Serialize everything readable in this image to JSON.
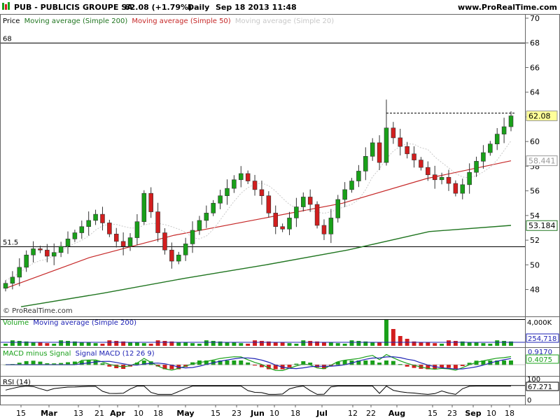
{
  "header": {
    "ticker": "PUB - PUBLICIS GROUPE SA",
    "price": "62.08 (+1.79%)",
    "period": "Daily",
    "datetime": "Sep 18 2013 11:48",
    "site": "www.ProRealTime.com",
    "watermark": "© ProRealTime.com",
    "colors": {
      "up": "#19a019",
      "down": "#d21e1e"
    }
  },
  "chart_data": [
    {
      "type": "candlestick",
      "title": "Price",
      "series": [
        {
          "name": "Moving average (Simple 200)",
          "color": "#207520",
          "values": [
            46.6,
            47.7,
            48.9,
            50.0,
            51.2,
            52.7,
            53.2
          ]
        },
        {
          "name": "Moving average (Simple 50)",
          "color": "#c62828",
          "values": [
            48.1,
            50.6,
            52.4,
            53.7,
            55.0,
            57.0,
            58.44
          ]
        },
        {
          "name": "Moving average (Simple 20)",
          "color": "#c8c8c8",
          "values": []
        }
      ],
      "ylim": [
        46.5,
        70
      ],
      "yticks": [
        48,
        50,
        52,
        54,
        56,
        58,
        60,
        62,
        64,
        66,
        68,
        70
      ],
      "hlines": [
        68,
        51.5
      ],
      "hline_labels": [
        "68",
        "51.5"
      ],
      "badges": {
        "last": "62.08",
        "sma50": "58.441",
        "sma200": "53.184"
      },
      "closes": [
        48.5,
        49.0,
        49.8,
        50.8,
        51.3,
        51.2,
        50.7,
        51.0,
        51.5,
        52.1,
        52.6,
        53.1,
        53.6,
        54.1,
        53.4,
        52.5,
        51.9,
        51.5,
        52.2,
        53.5,
        55.8,
        54.3,
        52.6,
        51.2,
        50.3,
        50.8,
        51.7,
        52.8,
        53.6,
        54.2,
        55.0,
        55.6,
        56.2,
        56.9,
        57.4,
        56.8,
        56.1,
        55.6,
        54.2,
        53.1,
        52.9,
        53.8,
        54.7,
        55.5,
        54.9,
        53.2,
        52.5,
        53.8,
        55.3,
        56.1,
        56.8,
        57.6,
        58.8,
        59.9,
        58.3,
        61.1,
        60.3,
        59.6,
        59.0,
        58.5,
        57.9,
        57.3,
        56.9,
        57.1,
        56.6,
        55.8,
        56.5,
        57.5,
        58.4,
        59.1,
        59.8,
        60.6,
        61.2,
        62.08
      ]
    },
    {
      "type": "bar",
      "title": "Volume",
      "series": [
        {
          "name": "Moving average (Simple 200)",
          "color": "#1e22b4",
          "values": []
        }
      ],
      "yticks": [
        4000
      ],
      "ytick_labels": [
        "4,000K"
      ],
      "badge": "254,718"
    },
    {
      "type": "bar",
      "title": "MACD minus Signal",
      "series": [
        {
          "name": "Signal MACD (12 26 9)",
          "color": "#1e22b4",
          "values": []
        }
      ],
      "badges": [
        "0.9170",
        "0.4075"
      ]
    },
    {
      "type": "line",
      "title": "RSI (14)",
      "series": [
        {
          "name": "",
          "color": "#000000",
          "values": []
        }
      ],
      "yticks": [
        100,
        0
      ],
      "badge": "67.271"
    }
  ],
  "x_axis": {
    "labels": [
      "15",
      "Mar",
      "13",
      "21",
      "Apr",
      "10",
      "18",
      "May",
      "15",
      "23",
      "Jun",
      "10",
      "18",
      "Jul",
      "12",
      "22",
      "Aug",
      "15",
      "23",
      "Sep",
      "10",
      "18"
    ],
    "bold": [
      "Mar",
      "Apr",
      "May",
      "Jun",
      "Jul",
      "Aug",
      "Sep"
    ]
  }
}
